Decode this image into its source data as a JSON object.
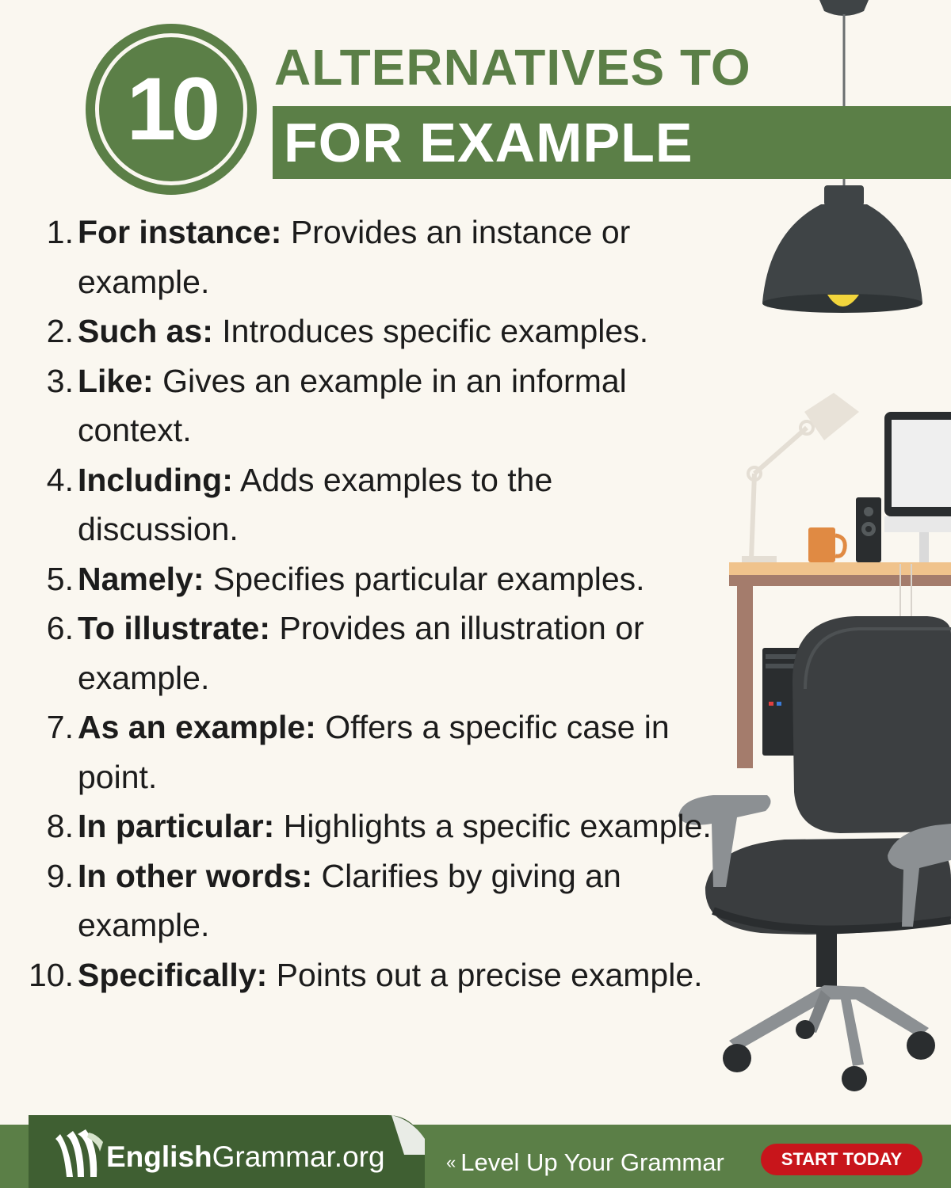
{
  "header": {
    "badge_number": "10",
    "title_line1": "ALTERNATIVES TO",
    "title_line2": "FOR EXAMPLE"
  },
  "items": [
    {
      "num": "1.",
      "term": "For instance:",
      "desc": " Provides an instance or example."
    },
    {
      "num": "2.",
      "term": "Such as:",
      "desc": " Introduces specific examples."
    },
    {
      "num": "3.",
      "term": "Like:",
      "desc": " Gives an example in an informal context."
    },
    {
      "num": "4.",
      "term": "Including:",
      "desc": " Adds examples to the discussion."
    },
    {
      "num": "5.",
      "term": "Namely:",
      "desc": " Specifies particular examples."
    },
    {
      "num": "6.",
      "term": "To illustrate:",
      "desc": " Provides an illustration or example."
    },
    {
      "num": "7.",
      "term": "As an example:",
      "desc": " Offers a specific case in point."
    },
    {
      "num": "8.",
      "term": "In particular:",
      "desc": " Highlights a specific example."
    },
    {
      "num": "9.",
      "term": "In other words:",
      "desc": " Clarifies by giving an example."
    },
    {
      "num": "10.",
      "term": "Specifically:",
      "desc": " Points out a precise example."
    }
  ],
  "footer": {
    "logo_bold": "English",
    "logo_rest": "Grammar.org",
    "tagline_icon": "double-chevron-left-icon",
    "tagline": "Level Up Your Grammar",
    "cta_label": "START TODAY"
  },
  "colors": {
    "brand_green": "#5b7f47",
    "footer_dark_green": "#3f5f32",
    "cta_red": "#c8151b",
    "background": "#faf7f0"
  },
  "illustration_icons": [
    "pendant-lamp-icon",
    "desk-lamp-icon",
    "monitor-icon",
    "speaker-icon",
    "mug-icon",
    "desk-icon",
    "computer-tower-icon",
    "office-chair-icon"
  ]
}
